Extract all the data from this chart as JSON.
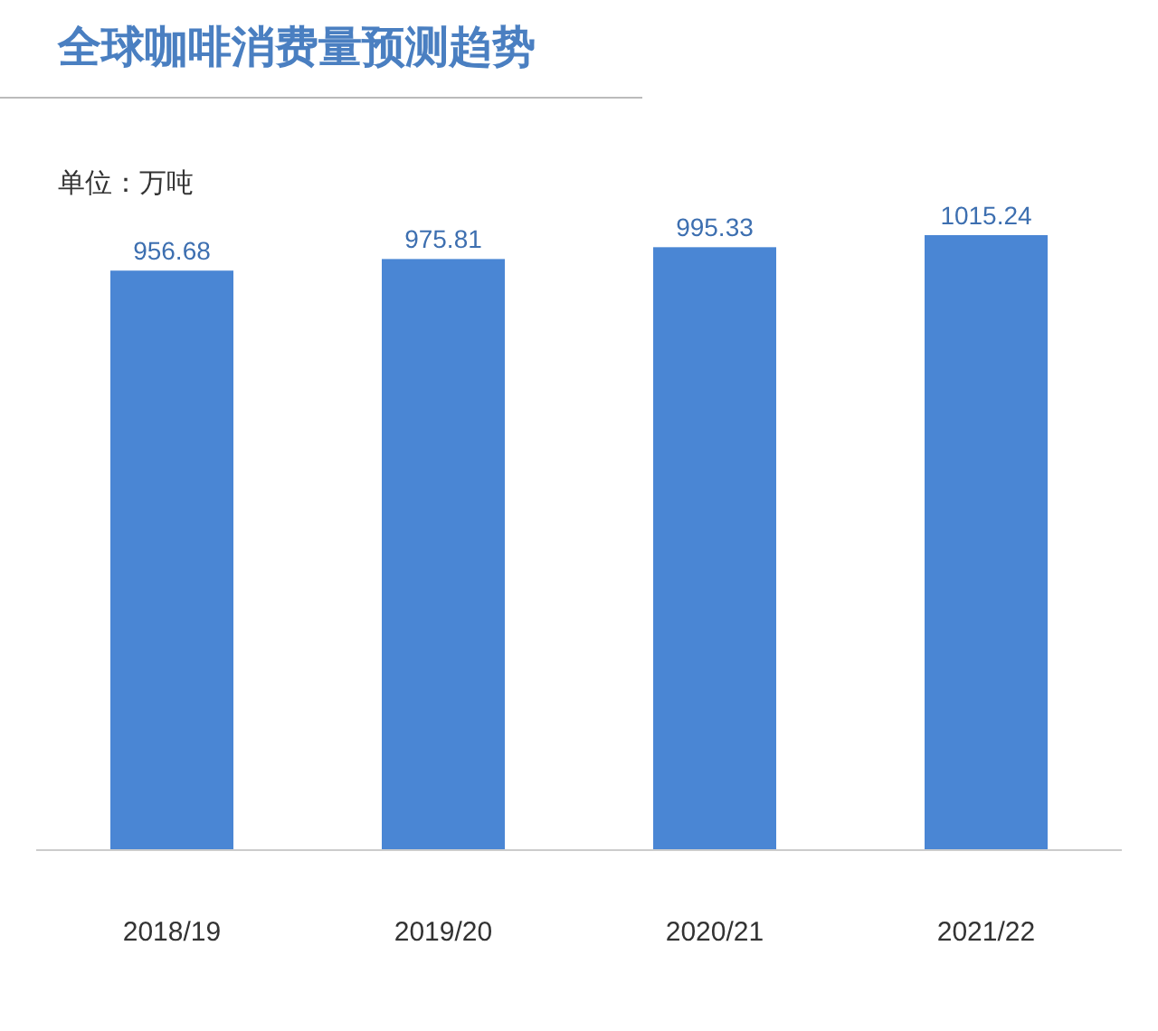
{
  "chart_data": {
    "type": "bar",
    "title": "全球咖啡消费量预测趋势",
    "annotations": [
      "单位：万吨"
    ],
    "categories": [
      "2018/19",
      "2019/20",
      "2020/21",
      "2021/22"
    ],
    "values": [
      956.68,
      975.81,
      995.33,
      1015.24
    ],
    "color": "#4a86d4",
    "data_labels": true
  }
}
